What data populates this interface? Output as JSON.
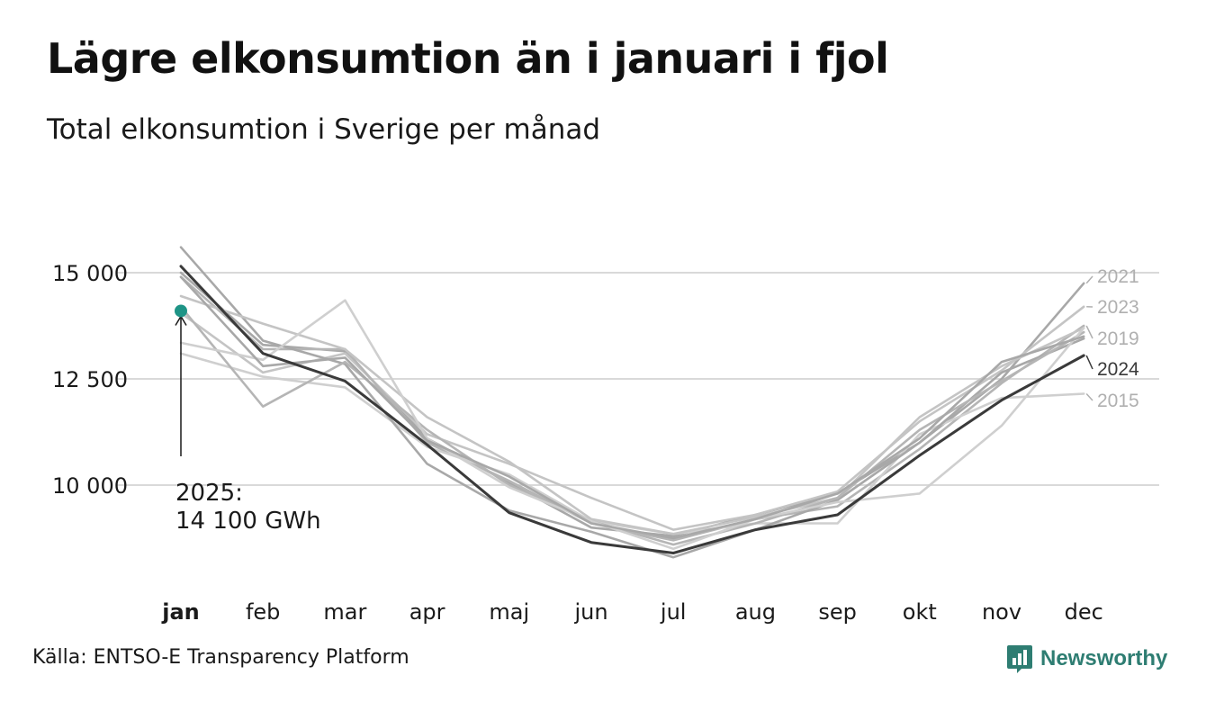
{
  "title": "Lägre elkonsumtion än i januari i fjol",
  "subtitle": "Total elkonsumtion i Sverige per månad",
  "source": "Källa: ENTSO-E Transparency Platform",
  "brand": "Newsworthy",
  "colors": {
    "highlight_line": "#3a3a3a",
    "other_lines": [
      "#a8a8a8",
      "#c4c4c4",
      "#b5b5b5",
      "#cfcfcf"
    ],
    "marker": "#1e9486",
    "grid": "#d9d9d9",
    "brand": "#2e7d72"
  },
  "chart_data": {
    "type": "line",
    "categories": [
      "jan",
      "feb",
      "mar",
      "apr",
      "maj",
      "jun",
      "jul",
      "aug",
      "sep",
      "okt",
      "nov",
      "dec"
    ],
    "highlight_category": "jan",
    "y_ticks": [
      10000,
      12500,
      15000
    ],
    "y_tick_labels": [
      "10 000",
      "12 500",
      "15 000"
    ],
    "ylim": [
      7500,
      16500
    ],
    "grid": true,
    "series": [
      {
        "name": "2021",
        "emphasis": "muted",
        "values": [
          15000,
          13300,
          13150,
          11100,
          10050,
          9000,
          8800,
          9300,
          9800,
          11000,
          12500,
          14750
        ]
      },
      {
        "name": "2023",
        "emphasis": "muted",
        "values": [
          14050,
          12650,
          13100,
          11200,
          10500,
          9700,
          8950,
          9300,
          9850,
          11500,
          12700,
          14200
        ]
      },
      {
        "name": "2019",
        "emphasis": "muted",
        "values": [
          14900,
          13200,
          13200,
          11000,
          10100,
          9100,
          8700,
          9200,
          9500,
          10850,
          12400,
          13750
        ]
      },
      {
        "name": "2024",
        "emphasis": "strong",
        "values": [
          15150,
          13100,
          12450,
          10950,
          9350,
          8650,
          8400,
          8950,
          9300,
          10700,
          12000,
          13050
        ]
      },
      {
        "name": "2015",
        "emphasis": "muted",
        "values": [
          13100,
          12550,
          12300,
          10900,
          10250,
          9150,
          8850,
          9100,
          9100,
          11200,
          12050,
          12150
        ]
      },
      {
        "name": "",
        "emphasis": "muted",
        "values": [
          15600,
          13400,
          12850,
          10500,
          9400,
          8900,
          8300,
          8950,
          9650,
          11000,
          12650,
          13450
        ]
      },
      {
        "name": "",
        "emphasis": "muted",
        "values": [
          14450,
          13800,
          13200,
          11600,
          10550,
          9200,
          8850,
          9250,
          9700,
          11600,
          12800,
          13700
        ]
      },
      {
        "name": "",
        "emphasis": "muted",
        "values": [
          14200,
          11850,
          12900,
          11300,
          10000,
          9150,
          8600,
          9100,
          9700,
          11300,
          12450,
          13600
        ]
      },
      {
        "name": "",
        "emphasis": "muted",
        "values": [
          13350,
          12950,
          14350,
          11100,
          9950,
          9150,
          8500,
          9200,
          9600,
          9800,
          11400,
          13700
        ]
      },
      {
        "name": "",
        "emphasis": "muted",
        "values": [
          14900,
          12800,
          13000,
          11050,
          10200,
          9100,
          8750,
          9200,
          9800,
          11100,
          12900,
          13500
        ]
      }
    ],
    "current": {
      "category": "jan",
      "value": 14100,
      "label_line1": "2025:",
      "label_line2": "14 100 GWh"
    }
  }
}
